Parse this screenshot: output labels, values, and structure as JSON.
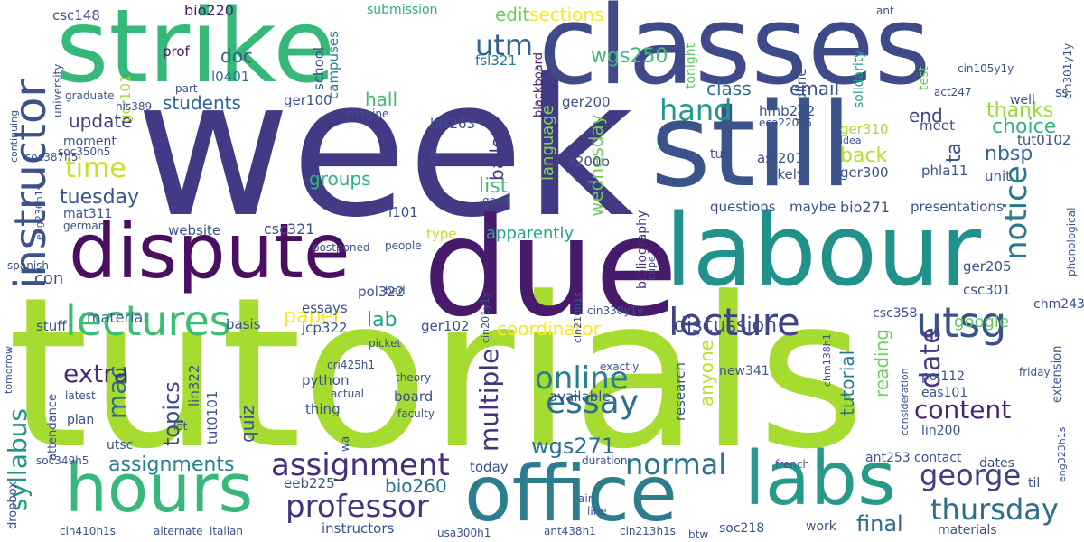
{
  "words": [
    {
      "text": "week",
      "color": "#433a85"
    },
    {
      "text": "tutorials",
      "color": "#a6db2f"
    },
    {
      "text": "classes",
      "color": "#3f4a89"
    },
    {
      "text": "strike",
      "color": "#36b878"
    },
    {
      "text": "still",
      "color": "#3b528b"
    },
    {
      "text": "labour",
      "color": "#21918c"
    },
    {
      "text": "due",
      "color": "#481a6c"
    },
    {
      "text": "dispute",
      "color": "#4a0f60"
    },
    {
      "text": "hours",
      "color": "#37b779"
    },
    {
      "text": "office",
      "color": "#2c7e8e"
    },
    {
      "text": "labs",
      "color": "#26998a"
    },
    {
      "text": "instructor",
      "color": "#3b528b"
    },
    {
      "text": "lectures",
      "color": "#3dbd73"
    },
    {
      "text": "lecture",
      "color": "#404386"
    },
    {
      "text": "utsg",
      "color": "#3b528b"
    },
    {
      "text": "assignment",
      "color": "#472d7b"
    },
    {
      "text": "professor",
      "color": "#46337e"
    },
    {
      "text": "george",
      "color": "#433d84"
    },
    {
      "text": "thursday",
      "color": "#2e6f8e"
    },
    {
      "text": "essay",
      "color": "#2e6f8e"
    },
    {
      "text": "online",
      "color": "#27818e"
    },
    {
      "text": "normal",
      "color": "#2a768e"
    },
    {
      "text": "utm",
      "color": "#33638d"
    },
    {
      "text": "time",
      "color": "#c8e020"
    },
    {
      "text": "hand",
      "color": "#1f9a8a"
    },
    {
      "text": "notice",
      "color": "#2a778e"
    },
    {
      "text": "content",
      "color": "#482475"
    },
    {
      "text": "multiple",
      "color": "#46327e"
    },
    {
      "text": "date",
      "color": "#453781"
    },
    {
      "text": "syllabus",
      "color": "#1f958b"
    },
    {
      "text": "mac",
      "color": "#2d708e"
    },
    {
      "text": "extra",
      "color": "#472c7a"
    },
    {
      "text": "topics",
      "color": "#3f4889"
    },
    {
      "text": "assignments",
      "color": "#25838e"
    },
    {
      "text": "wgs271",
      "color": "#2e6e8e"
    },
    {
      "text": "wgs250",
      "color": "#3fbc73"
    },
    {
      "text": "discussion",
      "color": "#3e4989"
    },
    {
      "text": "coordinator",
      "color": "#fde725"
    },
    {
      "text": "bio260",
      "color": "#2c718e"
    },
    {
      "text": "final",
      "color": "#306a8e"
    },
    {
      "text": "paper",
      "color": "#fde725"
    },
    {
      "text": "lab",
      "color": "#20a386"
    },
    {
      "text": "edit",
      "color": "#6ccd5a"
    },
    {
      "text": "sections",
      "color": "#fde725"
    },
    {
      "text": "thanks",
      "color": "#9bd93c"
    },
    {
      "text": "end",
      "color": "#404387"
    },
    {
      "text": "class",
      "color": "#2d718e"
    },
    {
      "text": "email",
      "color": "#3b528b"
    },
    {
      "text": "update",
      "color": "#433d84"
    },
    {
      "text": "students",
      "color": "#31668e"
    },
    {
      "text": "tuesday",
      "color": "#38588c"
    },
    {
      "text": "list",
      "color": "#3fbc73"
    },
    {
      "text": "groups",
      "color": "#2fb47c"
    },
    {
      "text": "choice",
      "color": "#30b57b"
    },
    {
      "text": "back",
      "color": "#b5de2b"
    },
    {
      "text": "ta",
      "color": "#3b528b"
    },
    {
      "text": "nbsp",
      "color": "#306a8e"
    },
    {
      "text": "doc",
      "color": "#34618d"
    },
    {
      "text": "hall",
      "color": "#3fbc73"
    },
    {
      "text": "bailey",
      "color": "#453882"
    },
    {
      "text": "wednesday",
      "color": "#6ccd5a"
    },
    {
      "text": "language",
      "color": "#84d44b"
    },
    {
      "text": "anyone",
      "color": "#bddf26"
    },
    {
      "text": "tutorial",
      "color": "#2a788e"
    },
    {
      "text": "reading",
      "color": "#6ece58"
    },
    {
      "text": "quiz",
      "color": "#3b528b"
    },
    {
      "text": "google",
      "color": "#5ec962"
    },
    {
      "text": "apparently",
      "color": "#22a785"
    },
    {
      "text": "con",
      "color": "#3e4989"
    },
    {
      "text": "material",
      "color": "#365c8d"
    },
    {
      "text": "csc148",
      "color": "#3b528b"
    },
    {
      "text": "bio220",
      "color": "#482071"
    },
    {
      "text": "submission",
      "color": "#29af7f"
    },
    {
      "text": "ger101",
      "color": "#a8db34"
    },
    {
      "text": "prof",
      "color": "#471365"
    },
    {
      "text": "l0401",
      "color": "#2c728e"
    },
    {
      "text": "ger100",
      "color": "#3b528b"
    },
    {
      "text": "his263",
      "color": "#3b528b"
    },
    {
      "text": "ger200",
      "color": "#3b528b"
    },
    {
      "text": "fsl321",
      "color": "#2a768e"
    },
    {
      "text": "school",
      "color": "#3b528b"
    },
    {
      "text": "campuses",
      "color": "#26828e"
    },
    {
      "text": "blackboard",
      "color": "#481a6c"
    },
    {
      "text": "bibliography",
      "color": "#46327e"
    },
    {
      "text": "x200b",
      "color": "#3b528b"
    },
    {
      "text": "tonight",
      "color": "#5ec962"
    },
    {
      "text": "deadline",
      "color": "#3b528b"
    },
    {
      "text": "solidarity",
      "color": "#1fa188"
    },
    {
      "text": "test",
      "color": "#6ccd5a"
    },
    {
      "text": "hmb202",
      "color": "#3b528b"
    },
    {
      "text": "ger310",
      "color": "#a8db34"
    },
    {
      "text": "meet",
      "color": "#3b528b"
    },
    {
      "text": "tut0102",
      "color": "#3b528b"
    },
    {
      "text": "tut",
      "color": "#3b528b"
    },
    {
      "text": "ast201",
      "color": "#3b528b"
    },
    {
      "text": "likely",
      "color": "#3b528b"
    },
    {
      "text": "ger300",
      "color": "#3b528b"
    },
    {
      "text": "phla11",
      "color": "#3b528b"
    },
    {
      "text": "unit",
      "color": "#3b528b"
    },
    {
      "text": "bio271",
      "color": "#3b528b"
    },
    {
      "text": "maybe",
      "color": "#3b528b"
    },
    {
      "text": "questions",
      "color": "#3b528b"
    },
    {
      "text": "presentations",
      "color": "#3b528b"
    },
    {
      "text": "ger205",
      "color": "#3b528b"
    },
    {
      "text": "csc301",
      "color": "#3b528b"
    },
    {
      "text": "chm243",
      "color": "#3b528b"
    },
    {
      "text": "csc358",
      "color": "#3b528b"
    },
    {
      "text": "csc321",
      "color": "#3b528b"
    },
    {
      "text": "website",
      "color": "#3b528b"
    },
    {
      "text": "type",
      "color": "#c2df23"
    },
    {
      "text": "l101",
      "color": "#3b528b"
    },
    {
      "text": "pol322",
      "color": "#3b528b"
    },
    {
      "text": "jcp322",
      "color": "#3b528b"
    },
    {
      "text": "essays",
      "color": "#3b528b"
    },
    {
      "text": "basis",
      "color": "#3b528b"
    },
    {
      "text": "ger102",
      "color": "#3b528b"
    },
    {
      "text": "stuff",
      "color": "#3b528b"
    },
    {
      "text": "lin322",
      "color": "#3b528b"
    },
    {
      "text": "tut0101",
      "color": "#3b528b"
    },
    {
      "text": "python",
      "color": "#3b528b"
    },
    {
      "text": "thing",
      "color": "#3b528b"
    },
    {
      "text": "board",
      "color": "#3b528b"
    },
    {
      "text": "available",
      "color": "#3b528b"
    },
    {
      "text": "today",
      "color": "#3b528b"
    },
    {
      "text": "eeb225",
      "color": "#3b528b"
    },
    {
      "text": "instructors",
      "color": "#3b528b"
    },
    {
      "text": "attendance",
      "color": "#3b528b"
    },
    {
      "text": "plan",
      "color": "#3b528b"
    },
    {
      "text": "utsc",
      "color": "#3b528b"
    },
    {
      "text": "research",
      "color": "#3b528b"
    },
    {
      "text": "new341",
      "color": "#3b528b"
    },
    {
      "text": "pol112",
      "color": "#3b528b"
    },
    {
      "text": "eas101",
      "color": "#3b528b"
    },
    {
      "text": "lin200",
      "color": "#3b528b"
    },
    {
      "text": "ant253",
      "color": "#3b528b"
    },
    {
      "text": "contact",
      "color": "#3b528b"
    },
    {
      "text": "dates",
      "color": "#3b528b"
    },
    {
      "text": "til",
      "color": "#3b528b"
    },
    {
      "text": "soc218",
      "color": "#3b528b"
    },
    {
      "text": "work",
      "color": "#3b528b"
    },
    {
      "text": "materials",
      "color": "#3b528b"
    },
    {
      "text": "extension",
      "color": "#3b528b"
    },
    {
      "text": "mat311",
      "color": "#3b528b"
    },
    {
      "text": "moment",
      "color": "#3b528b"
    },
    {
      "text": "his389",
      "color": "#3b528b"
    },
    {
      "text": "graduate",
      "color": "#3b528b"
    },
    {
      "text": "university",
      "color": "#3b528b"
    },
    {
      "text": "soc350h5",
      "color": "#3b528b"
    },
    {
      "text": "soc387h5",
      "color": "#3b528b"
    },
    {
      "text": "eng236h1s",
      "color": "#3b528b"
    },
    {
      "text": "german",
      "color": "#3b528b"
    },
    {
      "text": "spanish",
      "color": "#3b528b"
    },
    {
      "text": "tomorrow",
      "color": "#3b528b"
    },
    {
      "text": "continuing",
      "color": "#3b528b"
    },
    {
      "text": "part",
      "color": "#3b528b"
    },
    {
      "text": "imagine",
      "color": "#3b528b"
    },
    {
      "text": "csc",
      "color": "#3b528b"
    },
    {
      "text": "good",
      "color": "#3b528b"
    },
    {
      "text": "postponed",
      "color": "#3b528b"
    },
    {
      "text": "people",
      "color": "#3b528b"
    },
    {
      "text": "bad",
      "color": "#3b528b"
    },
    {
      "text": "picket",
      "color": "#3b528b"
    },
    {
      "text": "theory",
      "color": "#3b528b"
    },
    {
      "text": "actual",
      "color": "#3b528b"
    },
    {
      "text": "faculty",
      "color": "#3b528b"
    },
    {
      "text": "latest",
      "color": "#3b528b"
    },
    {
      "text": "lot",
      "color": "#3b528b"
    },
    {
      "text": "wa",
      "color": "#3b528b"
    },
    {
      "text": "dropbox",
      "color": "#3b528b"
    },
    {
      "text": "soc349h5",
      "color": "#3b528b"
    },
    {
      "text": "cin410h1s",
      "color": "#3b528b"
    },
    {
      "text": "alternate",
      "color": "#3b528b"
    },
    {
      "text": "italian",
      "color": "#3b528b"
    },
    {
      "text": "usa300h1",
      "color": "#3b528b"
    },
    {
      "text": "ant438h1",
      "color": "#3b528b"
    },
    {
      "text": "cin213h1s",
      "color": "#3b528b"
    },
    {
      "text": "btw",
      "color": "#3b528b"
    },
    {
      "text": "air",
      "color": "#3b528b"
    },
    {
      "text": "line",
      "color": "#3b528b"
    },
    {
      "text": "duration",
      "color": "#3b528b"
    },
    {
      "text": "french",
      "color": "#3b528b"
    },
    {
      "text": "exactly",
      "color": "#3b528b"
    },
    {
      "text": "cri425h1",
      "color": "#3b528b"
    },
    {
      "text": "cin201y1y",
      "color": "#3b528b"
    },
    {
      "text": "cin210h1s",
      "color": "#3b528b"
    },
    {
      "text": "cin330y1y",
      "color": "#3b528b"
    },
    {
      "text": "cupe",
      "color": "#3b528b"
    },
    {
      "text": "chm138h1",
      "color": "#3b528b"
    },
    {
      "text": "consideration",
      "color": "#3b528b"
    },
    {
      "text": "friday",
      "color": "#3b528b"
    },
    {
      "text": "eng323h1s",
      "color": "#3b528b"
    },
    {
      "text": "phonological",
      "color": "#3b528b"
    },
    {
      "text": "cin301y1y",
      "color": "#3b528b"
    },
    {
      "text": "cin105y1y",
      "color": "#3b528b"
    },
    {
      "text": "act247",
      "color": "#3b528b"
    },
    {
      "text": "eco220y5",
      "color": "#3b528b"
    },
    {
      "text": "idea",
      "color": "#3b528b"
    },
    {
      "text": "ss",
      "color": "#3b528b"
    },
    {
      "text": "well",
      "color": "#3b528b"
    },
    {
      "text": "ant",
      "color": "#3b528b"
    }
  ]
}
